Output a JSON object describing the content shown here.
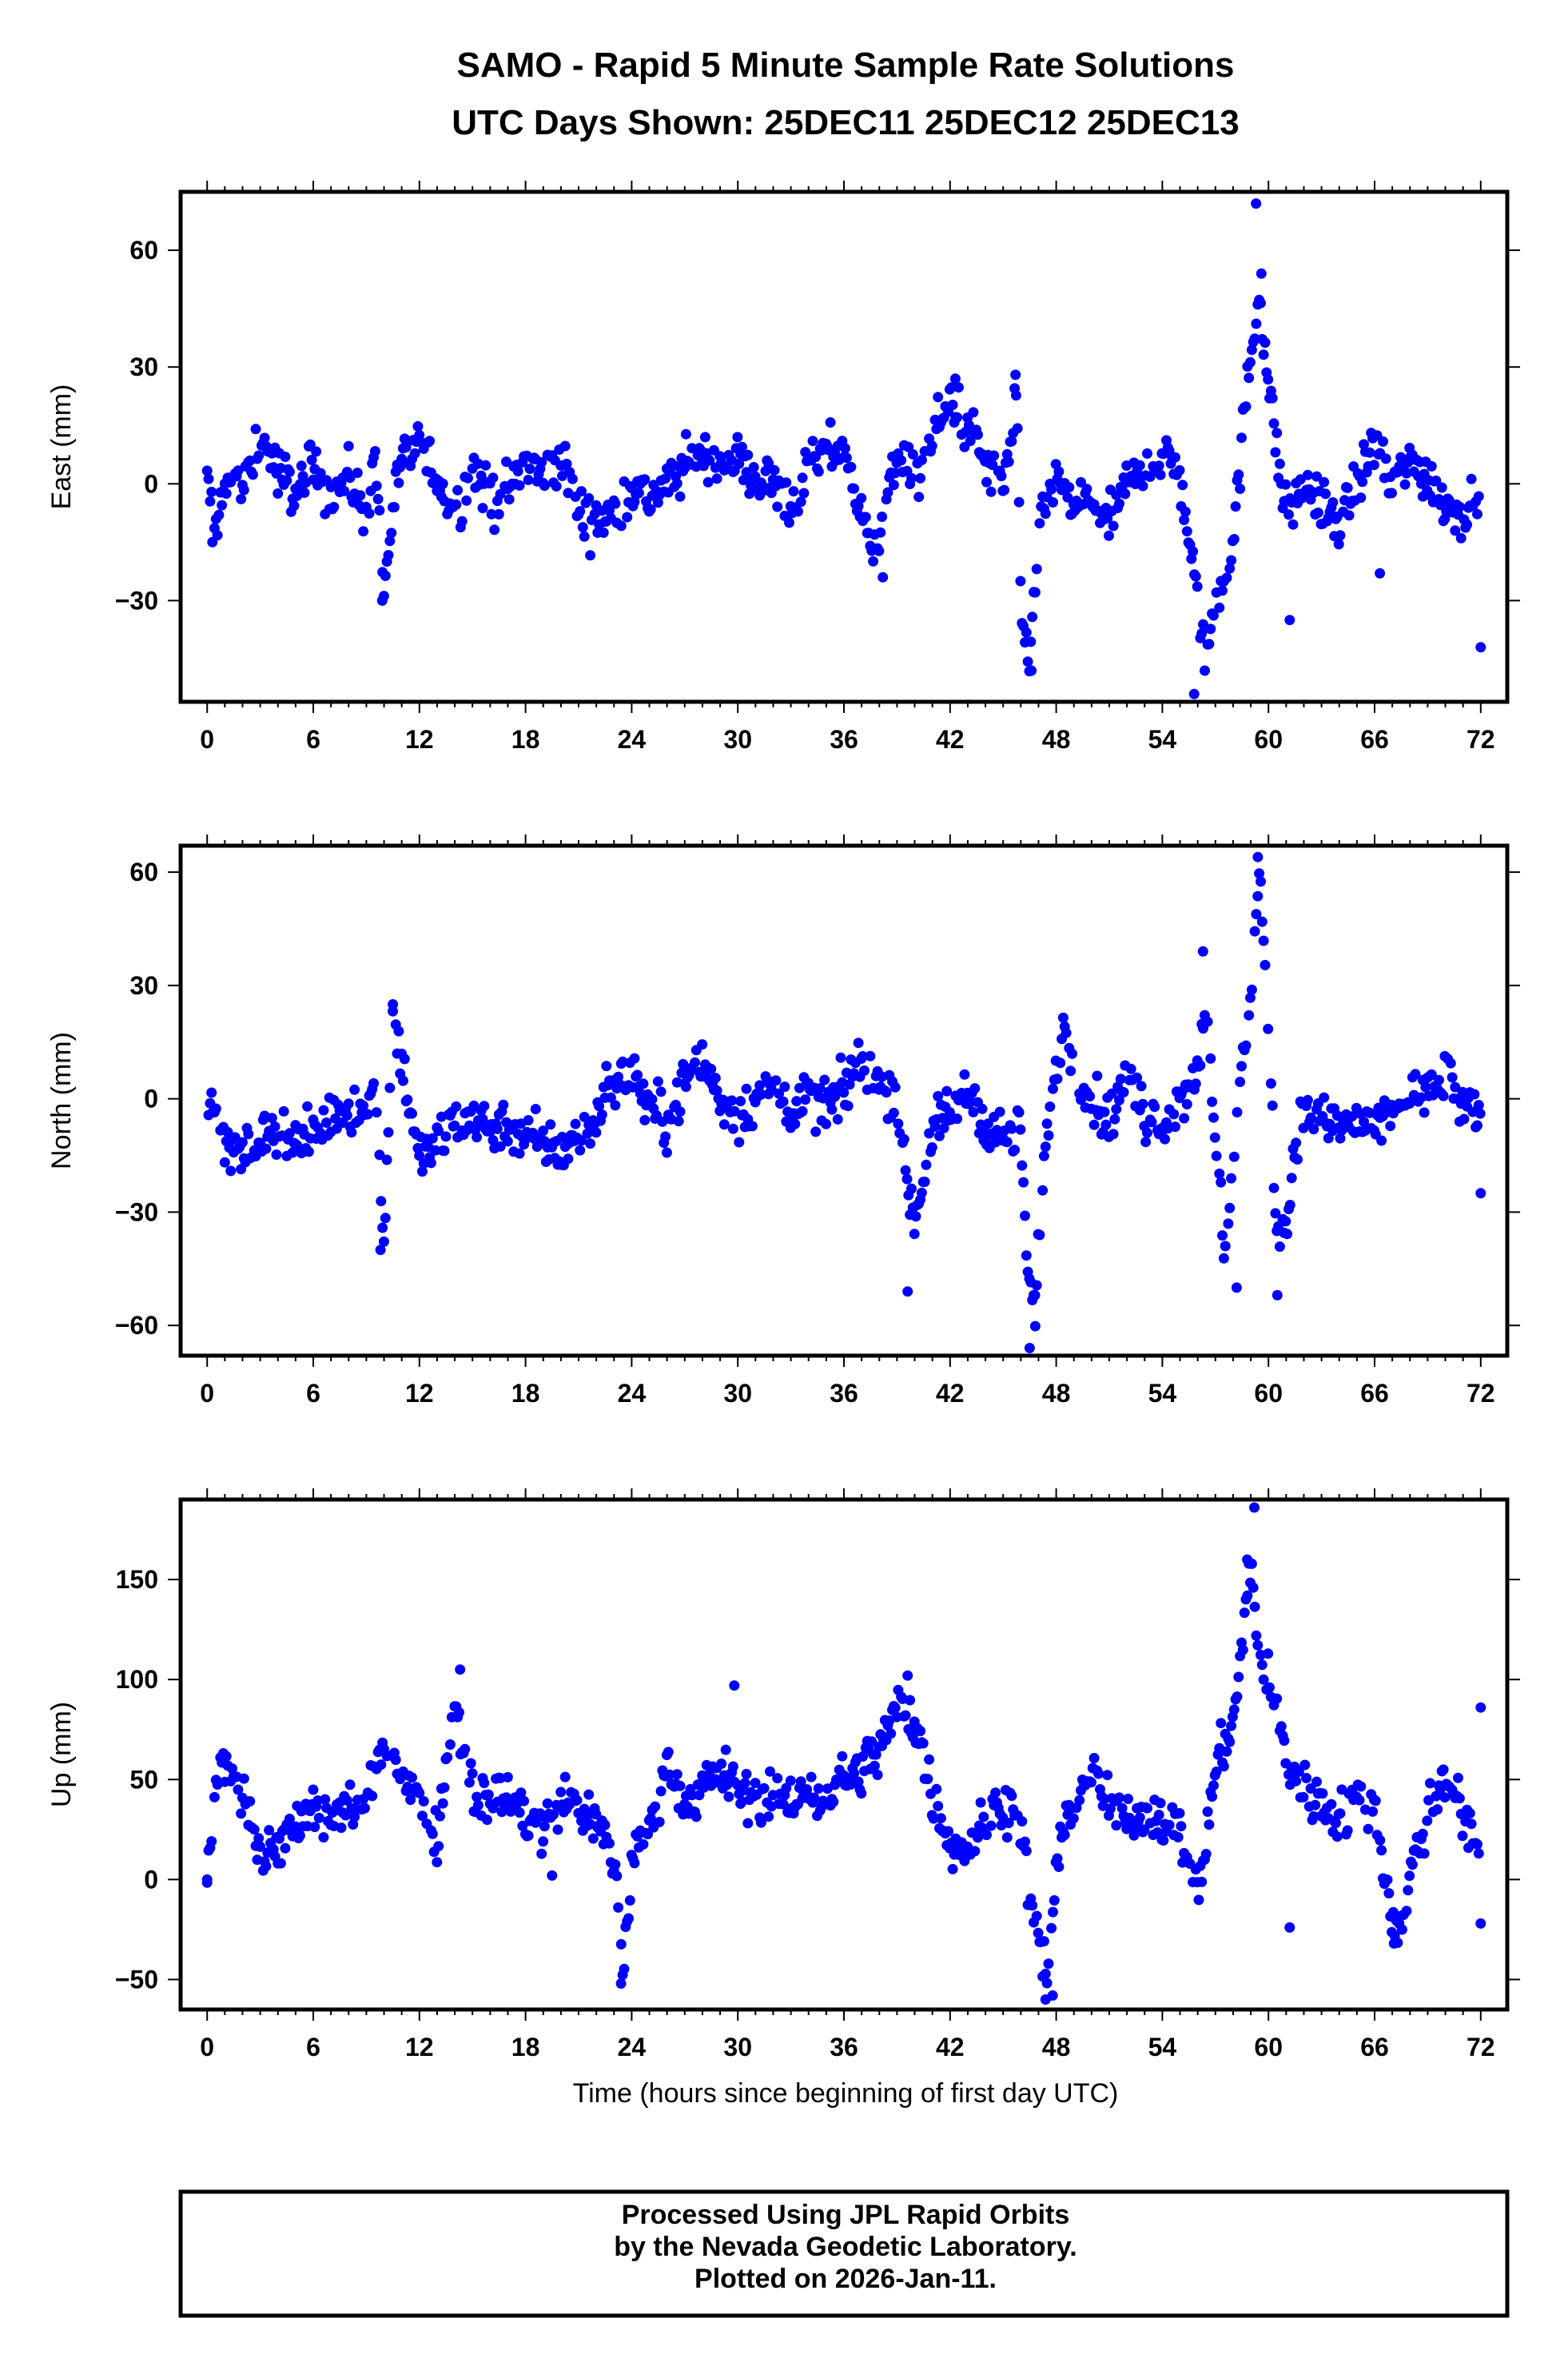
{
  "title": {
    "line1": "SAMO - Rapid 5 Minute Sample Rate Solutions",
    "line2": "UTC Days Shown:  25DEC11 25DEC12 25DEC13"
  },
  "xaxis": {
    "label": "Time (hours since beginning of first day UTC)",
    "ticks": [
      0,
      6,
      12,
      18,
      24,
      30,
      36,
      42,
      48,
      54,
      60,
      66,
      72
    ],
    "range": [
      -1.5,
      73.5
    ]
  },
  "footer": {
    "line1": "Processed Using JPL Rapid Orbits",
    "line2": "by the Nevada Geodetic Laboratory.",
    "line3": "Plotted on 2026-Jan-11."
  },
  "colors": {
    "points": "#0000ff",
    "frame": "#000000"
  },
  "chart_data": [
    {
      "type": "scatter",
      "ylabel": "East (mm)",
      "ylim": [
        -56,
        75
      ],
      "yticks": [
        -30,
        0,
        30,
        60
      ],
      "keypoints": [
        [
          0,
          0
        ],
        [
          0.5,
          -12
        ],
        [
          1,
          2
        ],
        [
          2,
          -2
        ],
        [
          3,
          12
        ],
        [
          3.5,
          8
        ],
        [
          4,
          3
        ],
        [
          5,
          -2
        ],
        [
          6,
          5
        ],
        [
          7,
          -3
        ],
        [
          8,
          2
        ],
        [
          9,
          -8
        ],
        [
          9.5,
          10
        ],
        [
          10,
          -29
        ],
        [
          10.5,
          -5
        ],
        [
          11,
          5
        ],
        [
          12,
          10
        ],
        [
          13,
          2
        ],
        [
          14,
          -8
        ],
        [
          15,
          4
        ],
        [
          16,
          -4
        ],
        [
          17,
          -2
        ],
        [
          18,
          5
        ],
        [
          19,
          2
        ],
        [
          20,
          6
        ],
        [
          21,
          -7
        ],
        [
          22,
          -10
        ],
        [
          23,
          -8
        ],
        [
          24,
          0
        ],
        [
          25,
          -4
        ],
        [
          26,
          0
        ],
        [
          27,
          4
        ],
        [
          28,
          8
        ],
        [
          29,
          5
        ],
        [
          30,
          6
        ],
        [
          31,
          2
        ],
        [
          32,
          0
        ],
        [
          33,
          -6
        ],
        [
          34,
          3
        ],
        [
          35,
          8
        ],
        [
          36,
          10
        ],
        [
          37,
          -10
        ],
        [
          38,
          -14
        ],
        [
          39,
          8
        ],
        [
          40,
          0
        ],
        [
          41,
          12
        ],
        [
          42,
          22
        ],
        [
          43,
          15
        ],
        [
          44,
          5
        ],
        [
          45,
          0
        ],
        [
          45.8,
          22
        ],
        [
          46,
          -38
        ],
        [
          46.5,
          -46
        ],
        [
          47,
          -10
        ],
        [
          48,
          0
        ],
        [
          49,
          -6
        ],
        [
          50,
          -4
        ],
        [
          51,
          -10
        ],
        [
          52,
          0
        ],
        [
          53,
          4
        ],
        [
          54,
          8
        ],
        [
          55,
          2
        ],
        [
          56,
          -30
        ],
        [
          56.5,
          -45
        ],
        [
          57,
          -30
        ],
        [
          58,
          -15
        ],
        [
          58.5,
          10
        ],
        [
          59,
          34
        ],
        [
          59.5,
          50
        ],
        [
          60,
          25
        ],
        [
          60.5,
          8
        ],
        [
          61,
          -8
        ],
        [
          62,
          0
        ],
        [
          63,
          -5
        ],
        [
          64,
          -10
        ],
        [
          65,
          0
        ],
        [
          66,
          10
        ],
        [
          67,
          0
        ],
        [
          68,
          6
        ],
        [
          69,
          2
        ],
        [
          70,
          -5
        ],
        [
          71,
          -8
        ],
        [
          72,
          0
        ]
      ],
      "outliers": [
        [
          0.3,
          -15
        ],
        [
          9.9,
          -30
        ],
        [
          38.2,
          -24
        ],
        [
          42.3,
          27
        ],
        [
          45.7,
          28
        ],
        [
          46.6,
          -48
        ],
        [
          55.8,
          -54
        ],
        [
          56.4,
          -48
        ],
        [
          59.3,
          72
        ],
        [
          59.6,
          54
        ],
        [
          61.2,
          -35
        ],
        [
          66.3,
          -23
        ],
        [
          72,
          -42
        ]
      ]
    },
    {
      "type": "scatter",
      "ylabel": "North (mm)",
      "ylim": [
        -68,
        67
      ],
      "yticks": [
        -60,
        -30,
        0,
        30,
        60
      ],
      "keypoints": [
        [
          0,
          0
        ],
        [
          1,
          -12
        ],
        [
          2,
          -15
        ],
        [
          3,
          -10
        ],
        [
          4,
          -8
        ],
        [
          5,
          -12
        ],
        [
          6,
          -10
        ],
        [
          7,
          -4
        ],
        [
          8,
          -2
        ],
        [
          9,
          -4
        ],
        [
          9.5,
          5
        ],
        [
          10,
          -38
        ],
        [
          10.5,
          22
        ],
        [
          11,
          10
        ],
        [
          12,
          -16
        ],
        [
          13,
          -12
        ],
        [
          14,
          -6
        ],
        [
          15,
          -4
        ],
        [
          16,
          -8
        ],
        [
          17,
          -6
        ],
        [
          18,
          -10
        ],
        [
          19,
          -12
        ],
        [
          20,
          -14
        ],
        [
          21,
          -10
        ],
        [
          22,
          -6
        ],
        [
          22.5,
          5
        ],
        [
          23,
          2
        ],
        [
          24,
          8
        ],
        [
          25,
          -2
        ],
        [
          26,
          -6
        ],
        [
          27,
          4
        ],
        [
          28,
          10
        ],
        [
          29,
          0
        ],
        [
          30,
          -4
        ],
        [
          31,
          0
        ],
        [
          32,
          2
        ],
        [
          33,
          -2
        ],
        [
          34,
          0
        ],
        [
          35,
          -2
        ],
        [
          36,
          2
        ],
        [
          37,
          10
        ],
        [
          38,
          4
        ],
        [
          39,
          2
        ],
        [
          39.5,
          -20
        ],
        [
          40,
          -32
        ],
        [
          41,
          -8
        ],
        [
          42,
          -4
        ],
        [
          43,
          2
        ],
        [
          44,
          -6
        ],
        [
          45,
          -10
        ],
        [
          46,
          -8
        ],
        [
          46.3,
          -40
        ],
        [
          46.8,
          -60
        ],
        [
          47.2,
          -20
        ],
        [
          48,
          10
        ],
        [
          48.5,
          20
        ],
        [
          49,
          8
        ],
        [
          50,
          0
        ],
        [
          51,
          -6
        ],
        [
          52,
          6
        ],
        [
          53,
          -4
        ],
        [
          54,
          -6
        ],
        [
          55,
          -2
        ],
        [
          56,
          10
        ],
        [
          56.5,
          20
        ],
        [
          57,
          -10
        ],
        [
          57.5,
          -40
        ],
        [
          58,
          -20
        ],
        [
          58.5,
          10
        ],
        [
          59,
          25
        ],
        [
          59.5,
          60
        ],
        [
          60,
          20
        ],
        [
          60.4,
          -30
        ],
        [
          61,
          -35
        ],
        [
          61.5,
          -10
        ],
        [
          62,
          -4
        ],
        [
          63,
          -6
        ],
        [
          64,
          -8
        ],
        [
          65,
          -6
        ],
        [
          66,
          -8
        ],
        [
          67,
          -4
        ],
        [
          68,
          2
        ],
        [
          69,
          0
        ],
        [
          70,
          6
        ],
        [
          71,
          -2
        ],
        [
          72,
          -6
        ]
      ],
      "outliers": [
        [
          9.8,
          -40
        ],
        [
          10.5,
          25
        ],
        [
          39.6,
          -51
        ],
        [
          46.5,
          -66
        ],
        [
          46.8,
          -52
        ],
        [
          56.3,
          39
        ],
        [
          59.4,
          64
        ],
        [
          58.2,
          -50
        ],
        [
          60.5,
          -52
        ],
        [
          72,
          -25
        ]
      ]
    },
    {
      "type": "scatter",
      "ylabel": "Up (mm)",
      "ylim": [
        -65,
        190
      ],
      "yticks": [
        -50,
        0,
        50,
        100,
        150
      ],
      "keypoints": [
        [
          0,
          0
        ],
        [
          0.5,
          50
        ],
        [
          1,
          60
        ],
        [
          2,
          45
        ],
        [
          2.5,
          30
        ],
        [
          3,
          10
        ],
        [
          4,
          20
        ],
        [
          5,
          22
        ],
        [
          6,
          35
        ],
        [
          7,
          30
        ],
        [
          8,
          38
        ],
        [
          9,
          35
        ],
        [
          10,
          70
        ],
        [
          11,
          55
        ],
        [
          12,
          40
        ],
        [
          13,
          22
        ],
        [
          14,
          90
        ],
        [
          15,
          45
        ],
        [
          16,
          40
        ],
        [
          17,
          42
        ],
        [
          18,
          30
        ],
        [
          19,
          25
        ],
        [
          20,
          40
        ],
        [
          21,
          35
        ],
        [
          22,
          30
        ],
        [
          23,
          10
        ],
        [
          23.5,
          -45
        ],
        [
          24,
          10
        ],
        [
          25,
          25
        ],
        [
          26,
          60
        ],
        [
          27,
          40
        ],
        [
          28,
          45
        ],
        [
          29,
          55
        ],
        [
          30,
          45
        ],
        [
          31,
          40
        ],
        [
          32,
          45
        ],
        [
          33,
          35
        ],
        [
          34,
          45
        ],
        [
          35,
          40
        ],
        [
          36,
          50
        ],
        [
          37,
          55
        ],
        [
          38,
          65
        ],
        [
          39,
          85
        ],
        [
          40,
          80
        ],
        [
          41,
          40
        ],
        [
          42,
          20
        ],
        [
          43,
          15
        ],
        [
          44,
          30
        ],
        [
          45,
          40
        ],
        [
          46,
          30
        ],
        [
          46.5,
          -10
        ],
        [
          47,
          -30
        ],
        [
          47.5,
          -50
        ],
        [
          48,
          10
        ],
        [
          49,
          40
        ],
        [
          50,
          55
        ],
        [
          51,
          35
        ],
        [
          52,
          30
        ],
        [
          53,
          35
        ],
        [
          54,
          30
        ],
        [
          55,
          25
        ],
        [
          56,
          -10
        ],
        [
          57,
          55
        ],
        [
          58,
          80
        ],
        [
          58.5,
          115
        ],
        [
          59,
          160
        ],
        [
          59.5,
          110
        ],
        [
          60,
          100
        ],
        [
          61,
          60
        ],
        [
          62,
          45
        ],
        [
          63,
          40
        ],
        [
          64,
          30
        ],
        [
          65,
          40
        ],
        [
          66,
          35
        ],
        [
          67,
          -20
        ],
        [
          67.5,
          -25
        ],
        [
          68,
          5
        ],
        [
          69,
          30
        ],
        [
          70,
          55
        ],
        [
          71,
          30
        ],
        [
          72,
          10
        ]
      ],
      "outliers": [
        [
          0,
          0
        ],
        [
          14.3,
          105
        ],
        [
          19.5,
          2
        ],
        [
          23.4,
          -52
        ],
        [
          29.8,
          97
        ],
        [
          39.6,
          102
        ],
        [
          47.4,
          -60
        ],
        [
          47.8,
          -58
        ],
        [
          59.2,
          186
        ],
        [
          58.8,
          160
        ],
        [
          61.2,
          -24
        ],
        [
          67.1,
          -32
        ],
        [
          72,
          86
        ],
        [
          72,
          -22
        ]
      ]
    }
  ]
}
